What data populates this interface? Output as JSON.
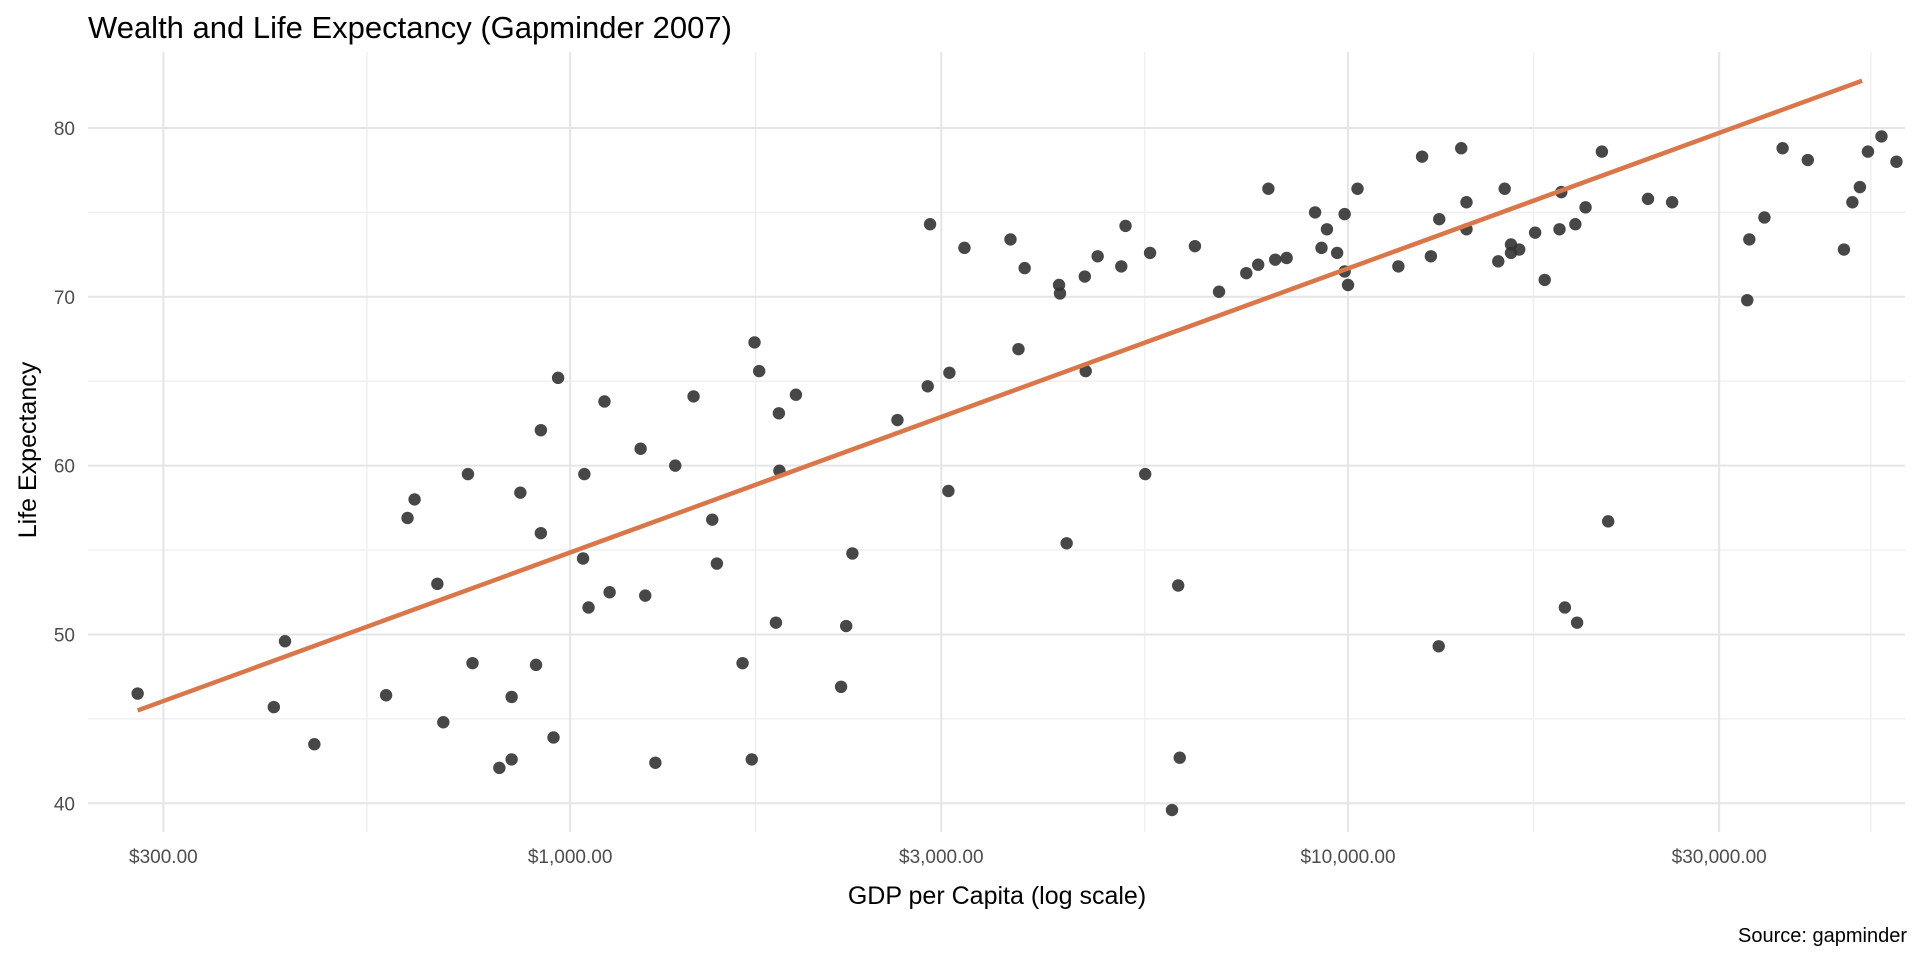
{
  "chart_data": {
    "type": "scatter",
    "title": "Wealth and Life Expectancy (Gapminder 2007)",
    "xlabel": "GDP per Capita (log scale)",
    "ylabel": "Life Expectancy",
    "caption": "Source: gapminder",
    "x_scale": "log10",
    "xlim": [
      240,
      52000
    ],
    "ylim": [
      38.3,
      84.5
    ],
    "x_ticks": [
      {
        "value": 300,
        "label": "$300.00"
      },
      {
        "value": 1000,
        "label": "$1,000.00"
      },
      {
        "value": 3000,
        "label": "$3,000.00"
      },
      {
        "value": 10000,
        "label": "$10,000.00"
      },
      {
        "value": 30000,
        "label": "$30,000.00"
      }
    ],
    "x_minor_ticks": [
      548,
      1732,
      5477,
      17320,
      47000
    ],
    "y_ticks": [
      {
        "value": 40,
        "label": "40"
      },
      {
        "value": 50,
        "label": "50"
      },
      {
        "value": 60,
        "label": "60"
      },
      {
        "value": 70,
        "label": "70"
      },
      {
        "value": 80,
        "label": "80"
      }
    ],
    "y_minor_ticks": [
      45,
      55,
      65,
      75
    ],
    "grid": true,
    "point_color": "#333333",
    "trend_color": "#d9774b",
    "trend_line": {
      "x": [
        278,
        45800
      ],
      "y": [
        45.5,
        82.8
      ]
    },
    "points": [
      {
        "x": 278,
        "y": 46.5
      },
      {
        "x": 416,
        "y": 45.7
      },
      {
        "x": 430,
        "y": 49.6
      },
      {
        "x": 469,
        "y": 43.5
      },
      {
        "x": 580,
        "y": 46.4
      },
      {
        "x": 618,
        "y": 56.9
      },
      {
        "x": 631,
        "y": 58.0
      },
      {
        "x": 675,
        "y": 53.0
      },
      {
        "x": 687,
        "y": 44.8
      },
      {
        "x": 739,
        "y": 59.5
      },
      {
        "x": 749,
        "y": 48.3
      },
      {
        "x": 811,
        "y": 42.1
      },
      {
        "x": 841,
        "y": 42.6
      },
      {
        "x": 841,
        "y": 46.3
      },
      {
        "x": 863,
        "y": 58.4
      },
      {
        "x": 904,
        "y": 48.2
      },
      {
        "x": 917,
        "y": 62.1
      },
      {
        "x": 917,
        "y": 56.0
      },
      {
        "x": 952,
        "y": 43.9
      },
      {
        "x": 965,
        "y": 65.2
      },
      {
        "x": 1039,
        "y": 54.5
      },
      {
        "x": 1043,
        "y": 59.5
      },
      {
        "x": 1056,
        "y": 51.6
      },
      {
        "x": 1107,
        "y": 63.8
      },
      {
        "x": 1124,
        "y": 52.5
      },
      {
        "x": 1232,
        "y": 61.0
      },
      {
        "x": 1249,
        "y": 52.3
      },
      {
        "x": 1287,
        "y": 42.4
      },
      {
        "x": 1365,
        "y": 60.0
      },
      {
        "x": 1441,
        "y": 64.1
      },
      {
        "x": 1523,
        "y": 56.8
      },
      {
        "x": 1544,
        "y": 54.2
      },
      {
        "x": 1666,
        "y": 48.3
      },
      {
        "x": 1712,
        "y": 42.6
      },
      {
        "x": 1726,
        "y": 67.3
      },
      {
        "x": 1750,
        "y": 65.6
      },
      {
        "x": 1839,
        "y": 50.7
      },
      {
        "x": 1855,
        "y": 63.1
      },
      {
        "x": 1858,
        "y": 59.7
      },
      {
        "x": 1951,
        "y": 64.2
      },
      {
        "x": 2230,
        "y": 46.9
      },
      {
        "x": 2264,
        "y": 50.5
      },
      {
        "x": 2306,
        "y": 54.8
      },
      {
        "x": 2635,
        "y": 62.7
      },
      {
        "x": 2882,
        "y": 64.7
      },
      {
        "x": 2902,
        "y": 74.3
      },
      {
        "x": 3064,
        "y": 58.5
      },
      {
        "x": 3073,
        "y": 65.5
      },
      {
        "x": 3213,
        "y": 72.9
      },
      {
        "x": 3682,
        "y": 73.4
      },
      {
        "x": 3770,
        "y": 66.9
      },
      {
        "x": 3840,
        "y": 71.7
      },
      {
        "x": 4251,
        "y": 70.7
      },
      {
        "x": 4263,
        "y": 70.2
      },
      {
        "x": 4348,
        "y": 55.4
      },
      {
        "x": 4588,
        "y": 71.2
      },
      {
        "x": 4600,
        "y": 65.6
      },
      {
        "x": 4766,
        "y": 72.4
      },
      {
        "x": 5111,
        "y": 71.8
      },
      {
        "x": 5176,
        "y": 74.2
      },
      {
        "x": 5486,
        "y": 59.5
      },
      {
        "x": 5566,
        "y": 72.6
      },
      {
        "x": 5939,
        "y": 39.6
      },
      {
        "x": 6049,
        "y": 52.9
      },
      {
        "x": 6077,
        "y": 42.7
      },
      {
        "x": 6356,
        "y": 73.0
      },
      {
        "x": 6826,
        "y": 70.3
      },
      {
        "x": 7400,
        "y": 71.4
      },
      {
        "x": 7665,
        "y": 71.9
      },
      {
        "x": 7900,
        "y": 76.4
      },
      {
        "x": 8061,
        "y": 72.2
      },
      {
        "x": 8338,
        "y": 72.3
      },
      {
        "x": 9071,
        "y": 75.0
      },
      {
        "x": 9245,
        "y": 72.9
      },
      {
        "x": 9395,
        "y": 74.0
      },
      {
        "x": 9683,
        "y": 72.6
      },
      {
        "x": 9900,
        "y": 71.5
      },
      {
        "x": 9900,
        "y": 74.9
      },
      {
        "x": 10000,
        "y": 70.7
      },
      {
        "x": 10285,
        "y": 76.4
      },
      {
        "x": 11607,
        "y": 71.8
      },
      {
        "x": 12451,
        "y": 78.3
      },
      {
        "x": 12780,
        "y": 72.4
      },
      {
        "x": 13080,
        "y": 49.3
      },
      {
        "x": 13100,
        "y": 74.6
      },
      {
        "x": 13980,
        "y": 78.8
      },
      {
        "x": 14200,
        "y": 74.0
      },
      {
        "x": 14200,
        "y": 75.6
      },
      {
        "x": 15600,
        "y": 72.1
      },
      {
        "x": 15900,
        "y": 76.4
      },
      {
        "x": 16200,
        "y": 72.6
      },
      {
        "x": 16200,
        "y": 73.1
      },
      {
        "x": 16600,
        "y": 72.8
      },
      {
        "x": 17400,
        "y": 73.8
      },
      {
        "x": 17900,
        "y": 71.0
      },
      {
        "x": 18700,
        "y": 74.0
      },
      {
        "x": 18800,
        "y": 76.2
      },
      {
        "x": 19000,
        "y": 51.6
      },
      {
        "x": 19600,
        "y": 74.3
      },
      {
        "x": 19700,
        "y": 50.7
      },
      {
        "x": 20200,
        "y": 75.3
      },
      {
        "x": 21200,
        "y": 78.6
      },
      {
        "x": 21600,
        "y": 56.7
      },
      {
        "x": 24300,
        "y": 75.8
      },
      {
        "x": 26100,
        "y": 75.6
      },
      {
        "x": 32600,
        "y": 69.8
      },
      {
        "x": 32800,
        "y": 73.4
      },
      {
        "x": 34300,
        "y": 74.7
      },
      {
        "x": 36200,
        "y": 78.8
      },
      {
        "x": 39000,
        "y": 78.1
      },
      {
        "x": 43400,
        "y": 72.8
      },
      {
        "x": 44500,
        "y": 75.6
      },
      {
        "x": 45500,
        "y": 76.5
      },
      {
        "x": 46600,
        "y": 78.6
      },
      {
        "x": 48500,
        "y": 79.5
      },
      {
        "x": 50700,
        "y": 78.0
      }
    ]
  }
}
